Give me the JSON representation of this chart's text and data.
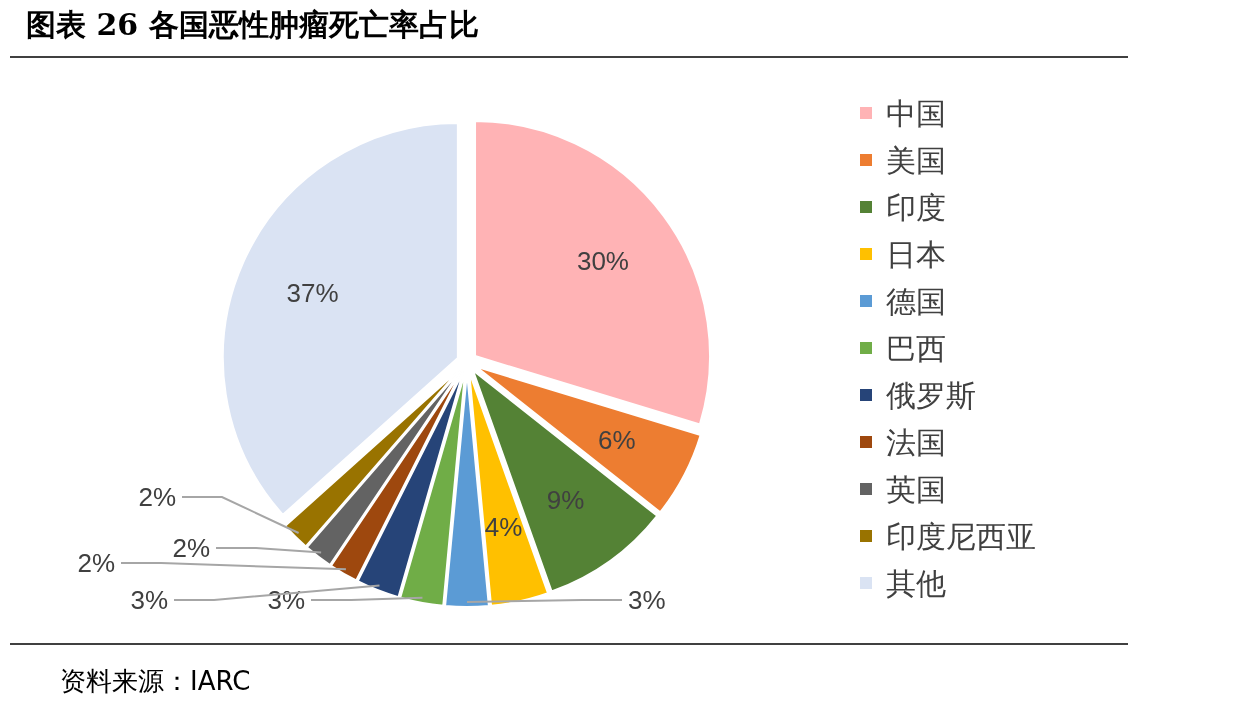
{
  "chart_data": {
    "type": "pie",
    "title": "图表 26 各国恶性肿瘤死亡率占比",
    "categories": [
      "中国",
      "美国",
      "印度",
      "日本",
      "德国",
      "巴西",
      "俄罗斯",
      "法国",
      "英国",
      "印度尼西亚",
      "其他"
    ],
    "values": [
      30,
      6,
      9,
      4,
      3,
      3,
      3,
      2,
      2,
      2,
      37
    ],
    "colors": [
      "#ffb3b5",
      "#ed7d31",
      "#548235",
      "#ffc000",
      "#5b9bd5",
      "#70ad47",
      "#264478",
      "#9e480e",
      "#636363",
      "#997300",
      "#dae3f3"
    ],
    "value_labels": [
      "30%",
      "6%",
      "9%",
      "4%",
      "3%",
      "3%",
      "3%",
      "2%",
      "2%",
      "2%",
      "37%"
    ],
    "legend": "right",
    "annotations": [
      "资料来源：IARC"
    ]
  }
}
